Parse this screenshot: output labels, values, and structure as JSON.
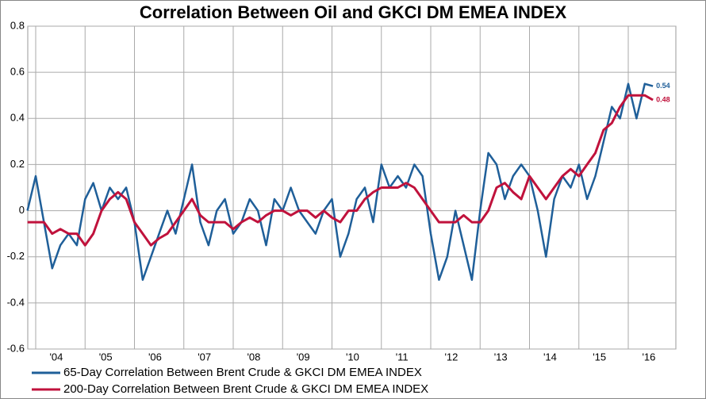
{
  "chart_data": {
    "type": "line",
    "title": "Correlation Between Oil and GKCI DM EMEA INDEX",
    "categories": [
      null,
      null,
      null,
      null,
      "'04",
      null,
      null,
      null,
      null,
      null,
      "'05",
      null,
      null,
      null,
      null,
      null,
      "'06",
      null,
      null,
      null,
      null,
      null,
      "'07",
      null,
      null,
      null,
      null,
      null,
      "'08",
      null,
      null,
      null,
      null,
      null,
      "'09",
      null,
      null,
      null,
      null,
      null,
      "'10",
      null,
      null,
      null,
      null,
      null,
      "'11",
      null,
      null,
      null,
      null,
      null,
      "'12",
      null,
      null,
      null,
      null,
      null,
      "'13",
      null,
      null,
      null,
      null,
      null,
      "'14",
      null,
      null,
      null,
      null,
      null,
      "'15",
      null,
      null,
      null,
      null,
      null,
      "'16"
    ],
    "series": [
      {
        "name": "65-Day Correlation Between Brent Crude & GKCI DM EMEA INDEX",
        "color": "#1f5f99",
        "values": [
          0.0,
          0.15,
          -0.05,
          -0.25,
          -0.15,
          -0.1,
          -0.15,
          0.05,
          0.12,
          0.0,
          0.1,
          0.05,
          0.1,
          -0.05,
          -0.3,
          -0.2,
          -0.1,
          0.0,
          -0.1,
          0.05,
          0.2,
          -0.05,
          -0.15,
          0.0,
          0.05,
          -0.1,
          -0.05,
          0.05,
          0.0,
          -0.15,
          0.05,
          0.0,
          0.1,
          0.0,
          -0.05,
          -0.1,
          0.0,
          0.05,
          -0.2,
          -0.1,
          0.05,
          0.1,
          -0.05,
          0.2,
          0.1,
          0.15,
          0.1,
          0.2,
          0.15,
          -0.1,
          -0.3,
          -0.2,
          0.0,
          -0.15,
          -0.3,
          0.0,
          0.25,
          0.2,
          0.05,
          0.15,
          0.2,
          0.15,
          0.0,
          -0.2,
          0.05,
          0.15,
          0.1,
          0.2,
          0.05,
          0.15,
          0.3,
          0.45,
          0.4,
          0.55,
          0.4,
          0.55,
          0.54
        ]
      },
      {
        "name": "200-Day Correlation Between Brent Crude & GKCI DM EMEA INDEX",
        "color": "#c0123c",
        "values": [
          -0.05,
          -0.05,
          -0.05,
          -0.1,
          -0.08,
          -0.1,
          -0.1,
          -0.15,
          -0.1,
          0.0,
          0.05,
          0.08,
          0.05,
          -0.05,
          -0.1,
          -0.15,
          -0.12,
          -0.1,
          -0.05,
          0.0,
          0.05,
          -0.02,
          -0.05,
          -0.05,
          -0.05,
          -0.08,
          -0.05,
          -0.03,
          -0.05,
          -0.02,
          0.0,
          0.0,
          -0.02,
          0.0,
          0.0,
          -0.03,
          0.0,
          -0.03,
          -0.05,
          0.0,
          0.0,
          0.05,
          0.08,
          0.1,
          0.1,
          0.1,
          0.12,
          0.1,
          0.05,
          0.0,
          -0.05,
          -0.05,
          -0.05,
          -0.02,
          -0.05,
          -0.05,
          0.0,
          0.1,
          0.12,
          0.08,
          0.05,
          0.15,
          0.1,
          0.05,
          0.1,
          0.15,
          0.18,
          0.15,
          0.2,
          0.25,
          0.35,
          0.38,
          0.45,
          0.5,
          0.5,
          0.5,
          0.48
        ]
      }
    ],
    "ylim": [
      -0.6,
      0.8
    ],
    "yticks": [
      -0.6,
      -0.4,
      -0.2,
      0,
      0.2,
      0.4,
      0.6,
      0.8
    ],
    "grid": true
  }
}
